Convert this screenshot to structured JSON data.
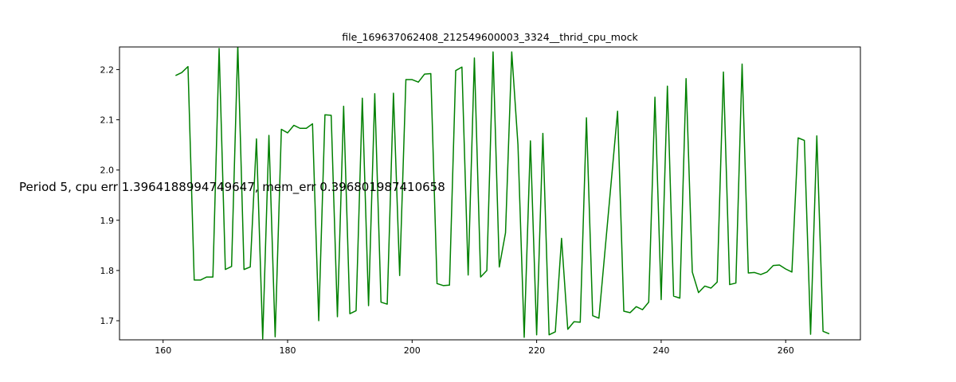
{
  "chart_data": {
    "type": "line",
    "title": "file_169637062408_212549600003_3324__thrid_cpu_mock",
    "annotation": "Period 5, cpu err 1.3964188994749647, mem_err 0.396801987410658",
    "xlabel": "",
    "ylabel": "",
    "xlim": [
      153,
      272
    ],
    "ylim": [
      1.662,
      2.245
    ],
    "xticks": [
      160,
      180,
      200,
      220,
      240,
      260
    ],
    "yticks": [
      1.7,
      1.8,
      1.9,
      2.0,
      2.1,
      2.2
    ],
    "grid": false,
    "color": "#008000",
    "series": [
      {
        "x": [
          162,
          163,
          164,
          165,
          166,
          167,
          168,
          169,
          170,
          171,
          172,
          173,
          174,
          175,
          176,
          177,
          178,
          179,
          180,
          181,
          182,
          183,
          184,
          185,
          186,
          187,
          188,
          189,
          190,
          191,
          192,
          193,
          194,
          195,
          196,
          197,
          198,
          199,
          200,
          201,
          202,
          203,
          204,
          205,
          206,
          207,
          208,
          209,
          210,
          211,
          212,
          213,
          214,
          215,
          216,
          217,
          218,
          219,
          220,
          221,
          222,
          223,
          224,
          225,
          226,
          227,
          228,
          229,
          230,
          233,
          234,
          235,
          236,
          237,
          238,
          239,
          240,
          241,
          242,
          243,
          244,
          245,
          246,
          247,
          248,
          249,
          250,
          251,
          252,
          253,
          254,
          255,
          256,
          257,
          258,
          259,
          260,
          261,
          262,
          263,
          264,
          265,
          266,
          267
        ],
        "y": [
          2.188,
          2.194,
          2.206,
          1.781,
          1.781,
          1.787,
          1.787,
          2.242,
          1.802,
          1.808,
          2.249,
          1.802,
          1.807,
          2.062,
          1.664,
          2.069,
          1.668,
          2.081,
          2.074,
          2.089,
          2.083,
          2.083,
          2.092,
          1.7,
          2.11,
          2.109,
          1.708,
          2.127,
          1.714,
          1.72,
          2.143,
          1.73,
          2.152,
          1.737,
          1.733,
          2.153,
          1.79,
          2.18,
          2.18,
          2.175,
          2.191,
          2.192,
          1.774,
          1.77,
          1.771,
          2.198,
          2.205,
          1.791,
          2.223,
          1.787,
          1.8,
          2.235,
          1.807,
          1.875,
          2.235,
          2.05,
          1.667,
          2.058,
          1.672,
          2.073,
          1.672,
          1.678,
          1.864,
          1.683,
          1.698,
          1.697,
          2.104,
          1.71,
          1.705,
          2.117,
          1.719,
          1.716,
          1.728,
          1.722,
          1.737,
          2.145,
          1.742,
          2.167,
          1.749,
          1.745,
          2.182,
          1.797,
          1.756,
          1.769,
          1.765,
          1.777,
          2.195,
          1.772,
          1.775,
          2.211,
          1.795,
          1.796,
          1.792,
          1.797,
          1.81,
          1.811,
          1.803,
          1.797,
          2.064,
          2.059,
          1.673,
          2.068,
          1.679,
          1.674
        ]
      }
    ]
  }
}
